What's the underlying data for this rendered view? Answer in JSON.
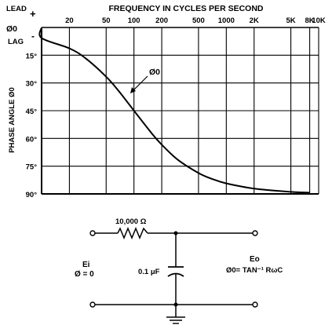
{
  "chart_data": {
    "type": "line",
    "title": "FREQUENCY IN CYCLES PER SECOND",
    "ylabel": "PHASE ANGLE Ø0",
    "x_scale": "log",
    "xlim": [
      10,
      10000
    ],
    "ylim": [
      0,
      90
    ],
    "y_inverted": true,
    "grid": true,
    "x_tick_labels": [
      {
        "value": 20,
        "label": "20"
      },
      {
        "value": 50,
        "label": "50"
      },
      {
        "value": 100,
        "label": "100"
      },
      {
        "value": 200,
        "label": "200"
      },
      {
        "value": 500,
        "label": "500"
      },
      {
        "value": 1000,
        "label": "1000"
      },
      {
        "value": 2000,
        "label": "2K"
      },
      {
        "value": 5000,
        "label": "5K"
      },
      {
        "value": 8000,
        "label": "8K"
      },
      {
        "value": 10000,
        "label": "10K"
      }
    ],
    "x_gridlines": [
      20,
      50,
      100,
      200,
      500,
      1000,
      2000,
      5000,
      8000,
      10000
    ],
    "y_tick_labels": [
      {
        "value": 15,
        "label": "15°"
      },
      {
        "value": 30,
        "label": "30°"
      },
      {
        "value": 45,
        "label": "45°"
      },
      {
        "value": 60,
        "label": "60°"
      },
      {
        "value": 75,
        "label": "75°"
      },
      {
        "value": 90,
        "label": "90°"
      }
    ],
    "y_corner_labels": {
      "lead": "LEAD",
      "plus": "+",
      "zero": "Ø0",
      "lag": "LAG",
      "minus": "-"
    },
    "series": [
      {
        "values": [
          {
            "x": 10,
            "y": 5.7
          },
          {
            "x": 20,
            "y": 11.3
          },
          {
            "x": 30,
            "y": 16.7
          },
          {
            "x": 50,
            "y": 26.6
          },
          {
            "x": 70,
            "y": 35.0
          },
          {
            "x": 100,
            "y": 45.0
          },
          {
            "x": 159,
            "y": 57.8
          },
          {
            "x": 200,
            "y": 63.4
          },
          {
            "x": 300,
            "y": 71.6
          },
          {
            "x": 500,
            "y": 78.7
          },
          {
            "x": 700,
            "y": 81.9
          },
          {
            "x": 1000,
            "y": 84.3
          },
          {
            "x": 2000,
            "y": 87.1
          },
          {
            "x": 5000,
            "y": 88.9
          },
          {
            "x": 8000,
            "y": 89.3
          }
        ]
      }
    ],
    "annotation": {
      "label": "Ø0",
      "x": 160,
      "y": 42
    }
  },
  "circuit": {
    "resistor_label": "10,000 Ω",
    "capacitor_label": "0.1 μF",
    "input_label": "Ei",
    "input_phase": "Ø = 0",
    "output_label": "Eo",
    "output_formula": "Ø0= TAN⁻¹ RωC"
  }
}
